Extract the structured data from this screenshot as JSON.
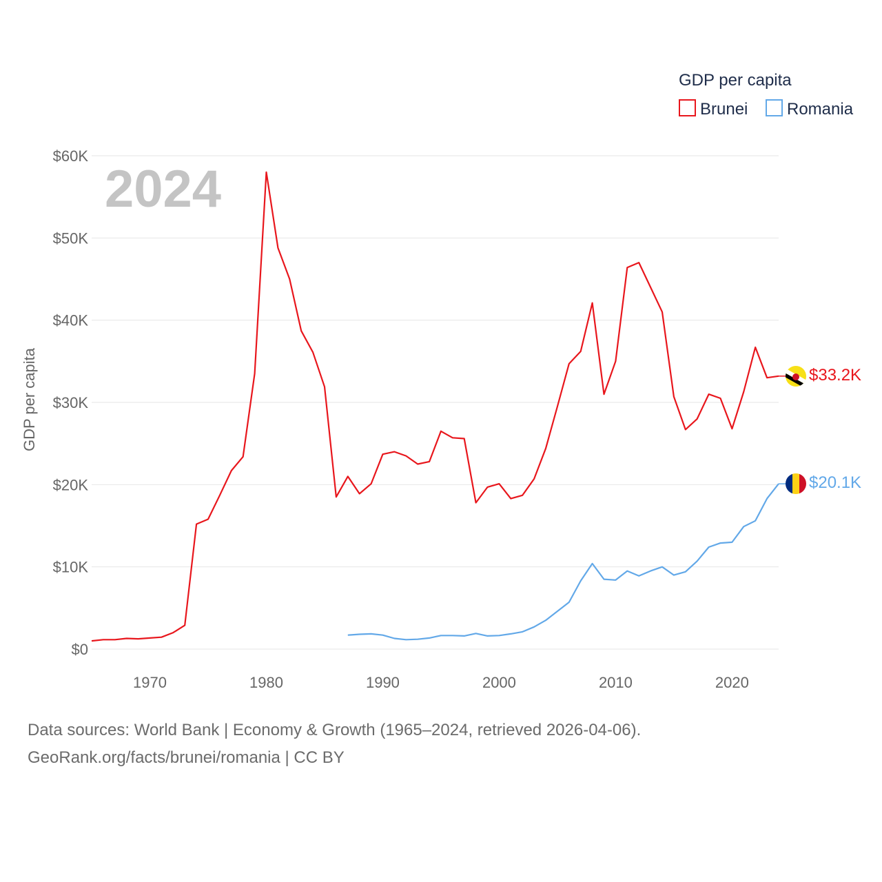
{
  "chart_data": {
    "type": "line",
    "title": "GDP per capita",
    "year_label": "2024",
    "ylabel": "GDP per capita",
    "xlabel": "",
    "xlim": [
      1965,
      2024
    ],
    "ylim": [
      0,
      60000
    ],
    "x_ticks": [
      "1970",
      "1980",
      "1990",
      "2000",
      "2010",
      "2020"
    ],
    "x_tick_values": [
      1970,
      1980,
      1990,
      2000,
      2010,
      2020
    ],
    "y_ticks": [
      "$0",
      "$10K",
      "$20K",
      "$30K",
      "$40K",
      "$50K",
      "$60K"
    ],
    "y_tick_values": [
      0,
      10000,
      20000,
      30000,
      40000,
      50000,
      60000
    ],
    "grid": true,
    "legend_position": "top-right",
    "series": [
      {
        "name": "Brunei",
        "color": "#e8161c",
        "end_label": "$33.2K",
        "flag_icon": "brunei-flag-icon",
        "x": [
          1965,
          1966,
          1967,
          1968,
          1969,
          1970,
          1971,
          1972,
          1973,
          1974,
          1975,
          1976,
          1977,
          1978,
          1979,
          1980,
          1981,
          1982,
          1983,
          1984,
          1985,
          1986,
          1987,
          1988,
          1989,
          1990,
          1991,
          1992,
          1993,
          1994,
          1995,
          1996,
          1997,
          1998,
          1999,
          2000,
          2001,
          2002,
          2003,
          2004,
          2005,
          2006,
          2007,
          2008,
          2009,
          2010,
          2011,
          2012,
          2013,
          2014,
          2015,
          2016,
          2017,
          2018,
          2019,
          2020,
          2021,
          2022,
          2023,
          2024
        ],
        "values": [
          1000,
          1150,
          1150,
          1300,
          1250,
          1350,
          1450,
          2000,
          2900,
          15200,
          15800,
          18700,
          21700,
          23400,
          33500,
          58000,
          48800,
          45000,
          38700,
          36100,
          31900,
          18500,
          21000,
          18900,
          20100,
          23700,
          24000,
          23500,
          22500,
          22800,
          26500,
          25700,
          25600,
          17800,
          19700,
          20100,
          18300,
          18700,
          20700,
          24400,
          29500,
          34700,
          36200,
          42100,
          31000,
          35000,
          46400,
          47000,
          44000,
          41000,
          30700,
          26700,
          28000,
          31000,
          30500,
          26800,
          31300,
          36700,
          33000,
          33200
        ]
      },
      {
        "name": "Romania",
        "color": "#62a8e8",
        "end_label": "$20.1K",
        "flag_icon": "romania-flag-icon",
        "x": [
          1987,
          1988,
          1989,
          1990,
          1991,
          1992,
          1993,
          1994,
          1995,
          1996,
          1997,
          1998,
          1999,
          2000,
          2001,
          2002,
          2003,
          2004,
          2005,
          2006,
          2007,
          2008,
          2009,
          2010,
          2011,
          2012,
          2013,
          2014,
          2015,
          2016,
          2017,
          2018,
          2019,
          2020,
          2021,
          2022,
          2023,
          2024
        ],
        "values": [
          1700,
          1800,
          1850,
          1700,
          1300,
          1150,
          1200,
          1350,
          1650,
          1650,
          1600,
          1900,
          1600,
          1650,
          1850,
          2100,
          2700,
          3500,
          4600,
          5700,
          8300,
          10400,
          8500,
          8400,
          9500,
          8900,
          9500,
          10000,
          9000,
          9400,
          10700,
          12400,
          12900,
          13000,
          14900,
          15600,
          18300,
          20100
        ]
      }
    ]
  },
  "footer": {
    "line1": "Data sources: World Bank | Economy & Growth (1965–2024, retrieved 2026-04-06).",
    "line2": "GeoRank.org/facts/brunei/romania | CC BY"
  }
}
